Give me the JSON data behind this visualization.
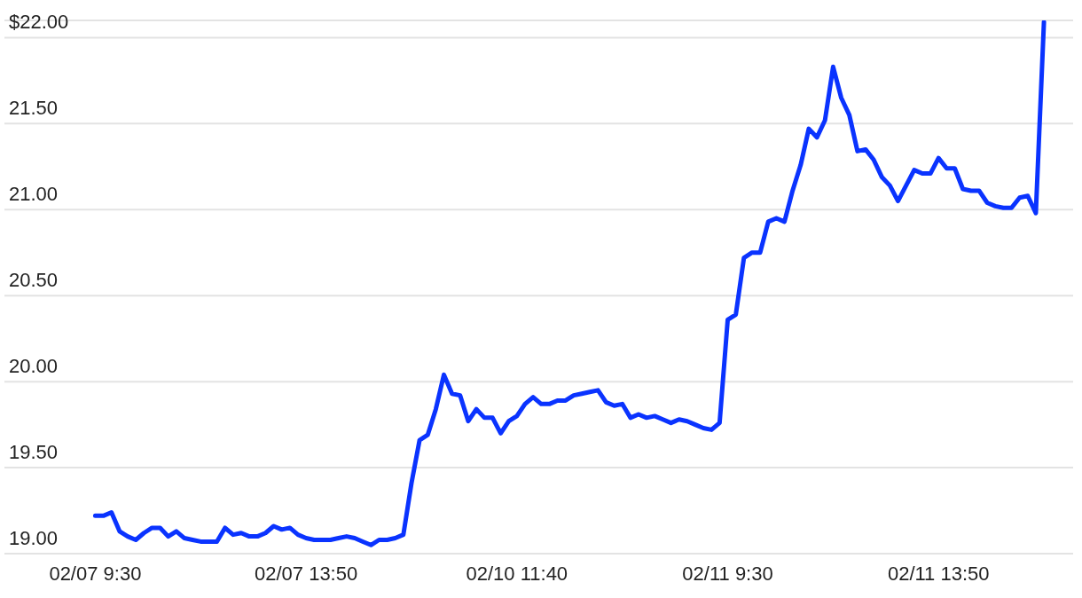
{
  "chart_data": {
    "type": "line",
    "categories": [
      "02/07 9:30",
      null,
      null,
      null,
      null,
      null,
      null,
      null,
      null,
      null,
      null,
      null,
      null,
      null,
      null,
      null,
      null,
      null,
      null,
      null,
      null,
      null,
      null,
      null,
      null,
      null,
      "02/07 13:50",
      null,
      null,
      null,
      null,
      null,
      null,
      null,
      null,
      null,
      null,
      null,
      null,
      null,
      null,
      null,
      null,
      null,
      null,
      null,
      null,
      null,
      null,
      null,
      null,
      null,
      "02/10 11:40",
      null,
      null,
      null,
      null,
      null,
      null,
      null,
      null,
      null,
      null,
      null,
      null,
      null,
      null,
      null,
      null,
      null,
      null,
      null,
      null,
      null,
      null,
      null,
      null,
      null,
      "02/11 9:30",
      null,
      null,
      null,
      null,
      null,
      null,
      null,
      null,
      null,
      null,
      null,
      null,
      null,
      null,
      null,
      null,
      null,
      null,
      null,
      null,
      null,
      null,
      null,
      null,
      null,
      "02/11 13:50",
      null,
      null,
      null,
      null,
      null,
      null,
      null,
      null,
      null,
      null,
      null,
      null,
      null
    ],
    "series": [
      {
        "color": "#0a33ff",
        "values": [
          19.22,
          19.22,
          19.24,
          19.13,
          19.1,
          19.08,
          19.12,
          19.15,
          19.15,
          19.1,
          19.13,
          19.09,
          19.08,
          19.07,
          19.07,
          19.07,
          19.15,
          19.11,
          19.12,
          19.1,
          19.1,
          19.12,
          19.16,
          19.14,
          19.15,
          19.11,
          19.09,
          19.08,
          19.08,
          19.08,
          19.09,
          19.1,
          19.09,
          19.07,
          19.05,
          19.08,
          19.08,
          19.09,
          19.11,
          19.41,
          19.66,
          19.69,
          19.84,
          20.04,
          19.93,
          19.92,
          19.77,
          19.84,
          19.79,
          19.79,
          19.7,
          19.77,
          19.8,
          19.87,
          19.91,
          19.87,
          19.87,
          19.89,
          19.89,
          19.92,
          19.93,
          19.94,
          19.95,
          19.88,
          19.86,
          19.87,
          19.79,
          19.81,
          19.79,
          19.8,
          19.78,
          19.76,
          19.78,
          19.77,
          19.75,
          19.73,
          19.72,
          19.76,
          20.36,
          20.39,
          20.72,
          20.75,
          20.75,
          20.93,
          20.95,
          20.93,
          21.11,
          21.26,
          21.47,
          21.42,
          21.52,
          21.83,
          21.65,
          21.55,
          21.34,
          21.35,
          21.29,
          21.19,
          21.14,
          21.05,
          21.14,
          21.23,
          21.21,
          21.21,
          21.3,
          21.24,
          21.24,
          21.12,
          21.11,
          21.11,
          21.04,
          21.02,
          21.01,
          21.01,
          21.07,
          21.08,
          20.98,
          22.09
        ]
      }
    ],
    "ylim": [
      19,
      22.1
    ],
    "yticks": [
      {
        "value": 19,
        "label": "19.00"
      },
      {
        "value": 19.5,
        "label": "19.50"
      },
      {
        "value": 20,
        "label": "20.00"
      },
      {
        "value": 20.5,
        "label": "20.50"
      },
      {
        "value": 21,
        "label": "21.00"
      },
      {
        "value": 21.5,
        "label": "21.50"
      },
      {
        "value": 22,
        "label": "$22.00"
      }
    ],
    "grid": "y",
    "marker": "none",
    "line_style": "solid"
  }
}
